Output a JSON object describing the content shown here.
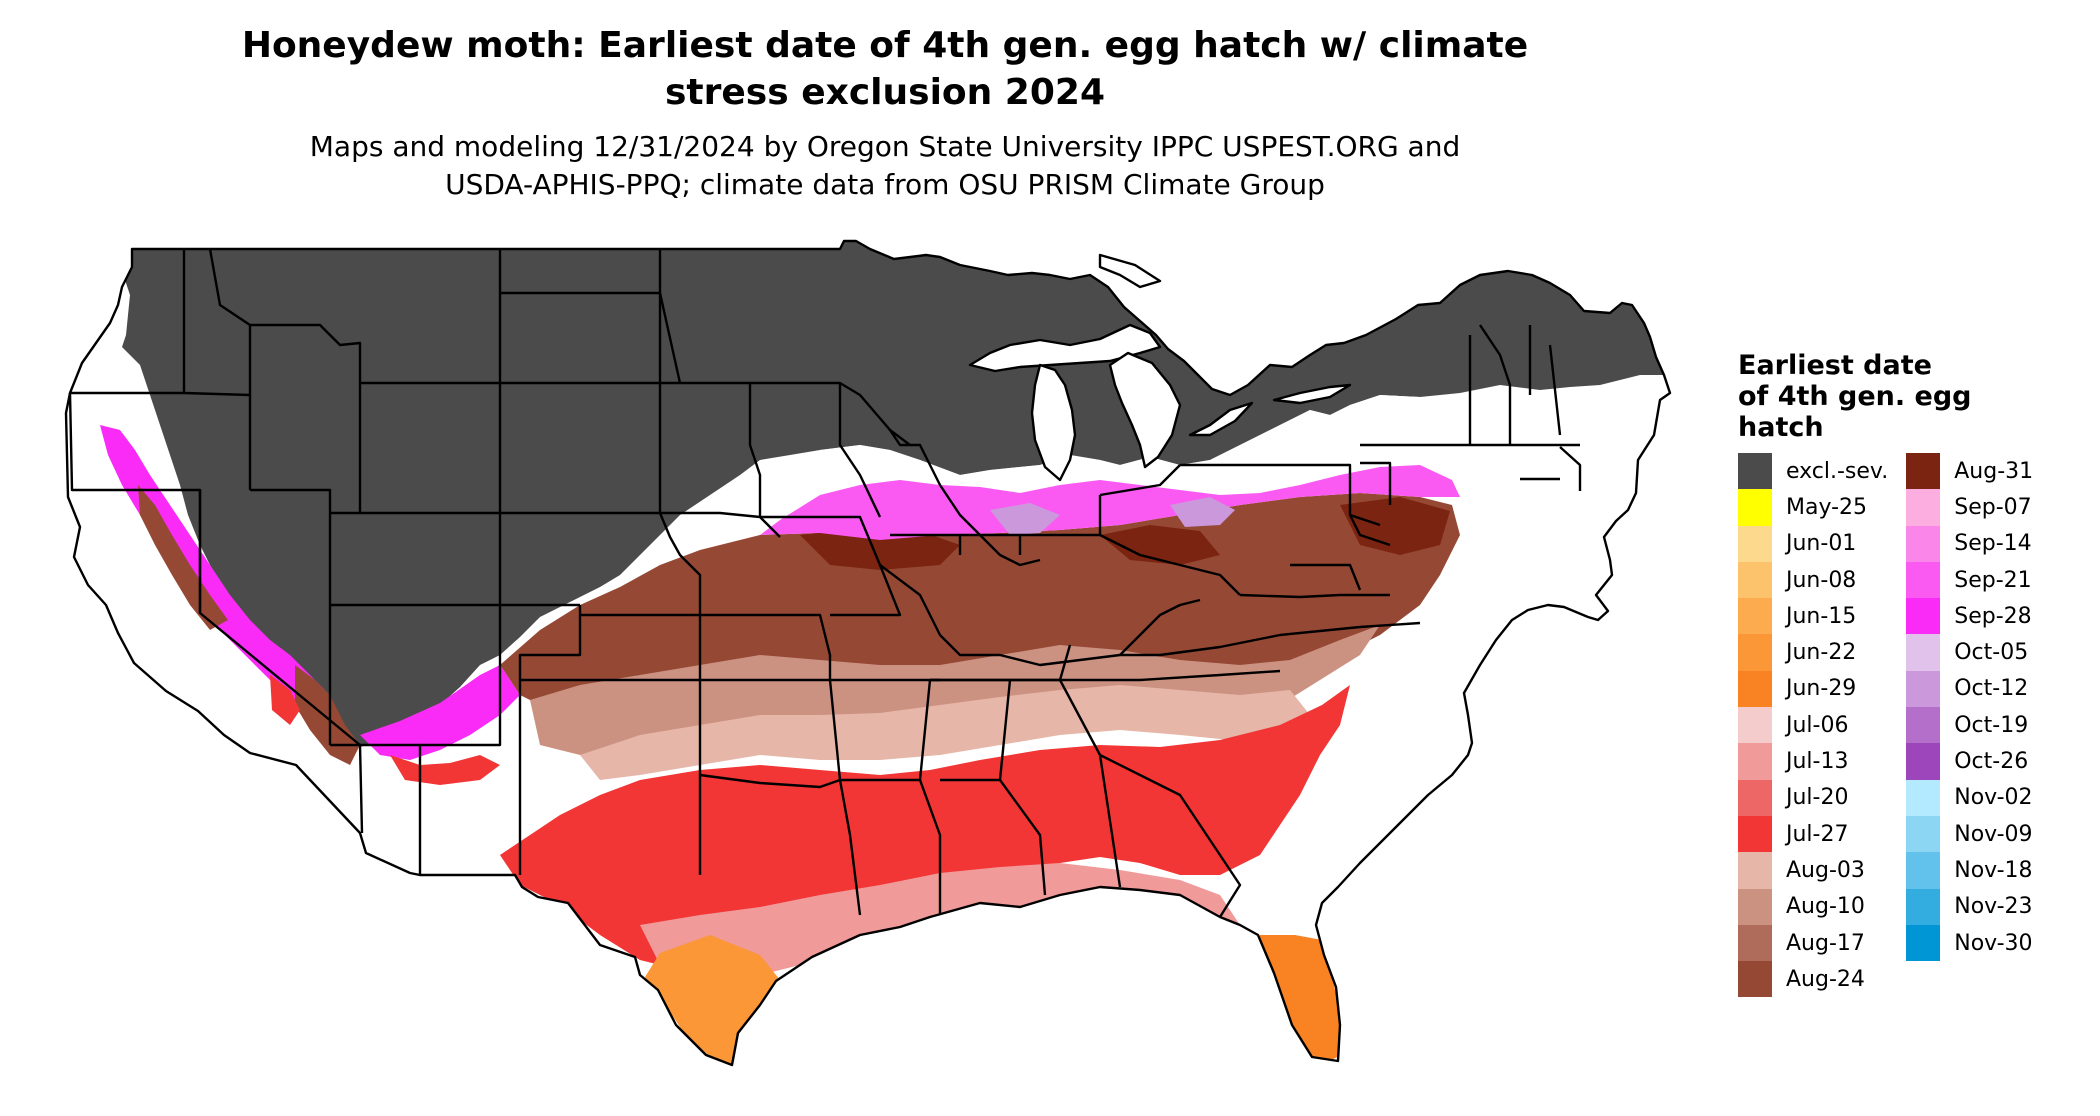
{
  "title_lines": [
    "Honeydew moth: Earliest date of 4th gen. egg hatch w/ climate",
    "stress exclusion 2024"
  ],
  "subtitle_lines": [
    "Maps and modeling 12/31/2024 by Oregon State University IPPC USPEST.ORG and",
    "USDA-APHIS-PPQ; climate data from OSU PRISM Climate Group"
  ],
  "legend": {
    "title_lines": [
      "Earliest date",
      "of 4th gen. egg",
      "hatch"
    ],
    "columns": [
      [
        {
          "label": "excl.-sev.",
          "color": "#4b4b4b"
        },
        {
          "label": "May-25",
          "color": "#ffff00"
        },
        {
          "label": "Jun-01",
          "color": "#fdd98e"
        },
        {
          "label": "Jun-08",
          "color": "#fdc26c"
        },
        {
          "label": "Jun-15",
          "color": "#fcac4e"
        },
        {
          "label": "Jun-22",
          "color": "#fb9736"
        },
        {
          "label": "Jun-29",
          "color": "#f98223"
        },
        {
          "label": "Jul-06",
          "color": "#f4cccc"
        },
        {
          "label": "Jul-13",
          "color": "#f09a9a"
        },
        {
          "label": "Jul-20",
          "color": "#ee6767"
        },
        {
          "label": "Jul-27",
          "color": "#f23535"
        },
        {
          "label": "Aug-03",
          "color": "#e6b6a9"
        },
        {
          "label": "Aug-10",
          "color": "#cc9281"
        },
        {
          "label": "Aug-17",
          "color": "#b06c5a"
        },
        {
          "label": "Aug-24",
          "color": "#954935"
        }
      ],
      [
        {
          "label": "Aug-31",
          "color": "#7a2411"
        },
        {
          "label": "Sep-07",
          "color": "#fcaee0"
        },
        {
          "label": "Sep-14",
          "color": "#fa86ea"
        },
        {
          "label": "Sep-21",
          "color": "#fa5af2"
        },
        {
          "label": "Sep-28",
          "color": "#fa2bf7"
        },
        {
          "label": "Oct-05",
          "color": "#e0c2ea"
        },
        {
          "label": "Oct-12",
          "color": "#cc98dc"
        },
        {
          "label": "Oct-19",
          "color": "#b46fcb"
        },
        {
          "label": "Oct-26",
          "color": "#9d46bc"
        },
        {
          "label": "Nov-02",
          "color": "#b4eaff"
        },
        {
          "label": "Nov-09",
          "color": "#8cd6f4"
        },
        {
          "label": "Nov-18",
          "color": "#62c2eb"
        },
        {
          "label": "Nov-23",
          "color": "#33ade0"
        },
        {
          "label": "Nov-30",
          "color": "#0096d6"
        }
      ]
    ]
  }
}
